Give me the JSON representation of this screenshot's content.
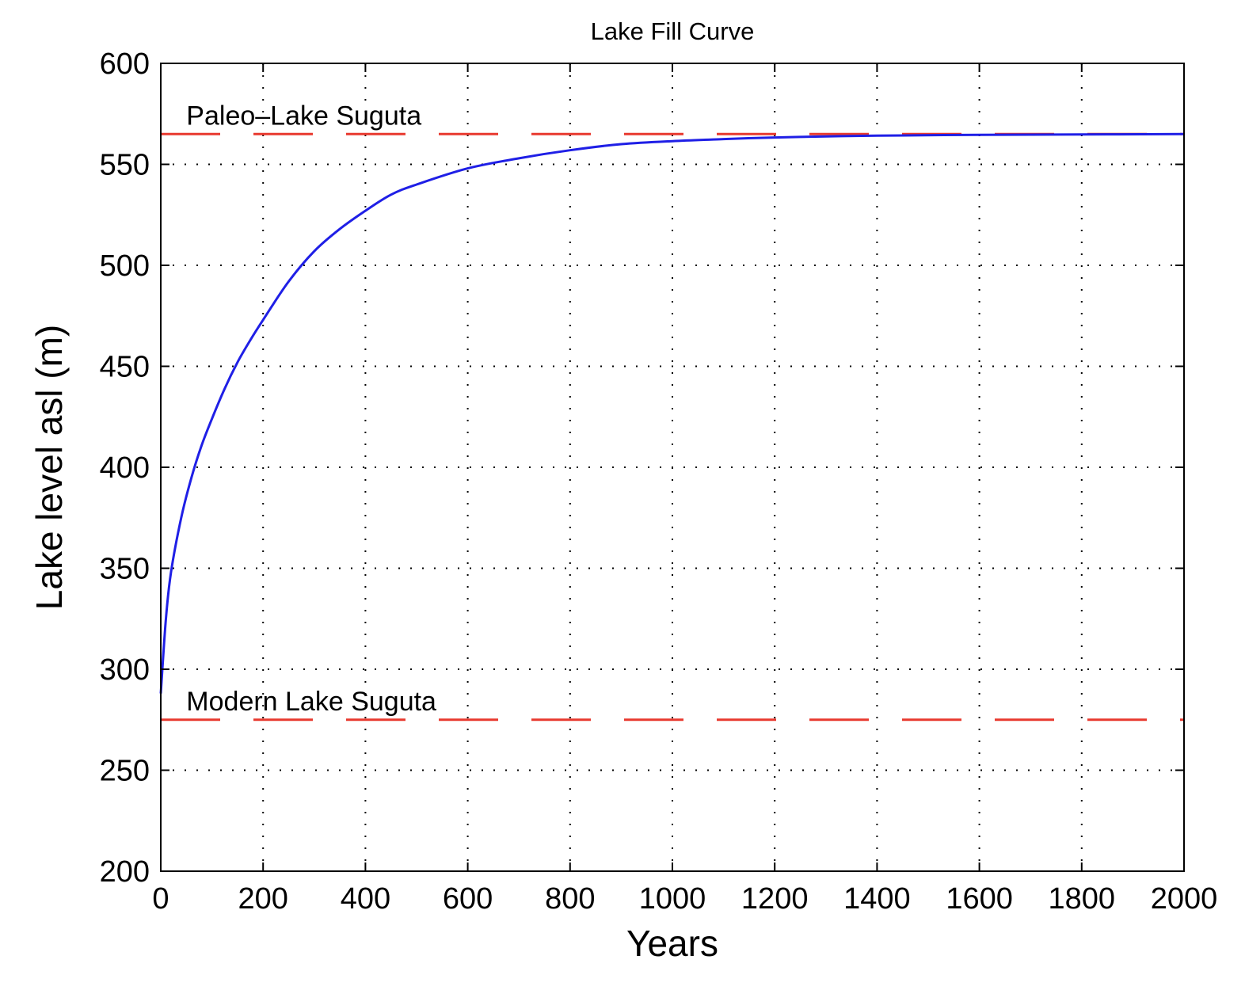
{
  "chart_data": {
    "type": "line",
    "title": "Lake Fill Curve",
    "xlabel": "Years",
    "ylabel": "Lake level asl (m)",
    "xlim": [
      0,
      2000
    ],
    "ylim": [
      200,
      600
    ],
    "xticks": [
      0,
      200,
      400,
      600,
      800,
      1000,
      1200,
      1400,
      1600,
      1800,
      2000
    ],
    "yticks": [
      200,
      250,
      300,
      350,
      400,
      450,
      500,
      550,
      600
    ],
    "grid": true,
    "grid_style": "dotted",
    "series": [
      {
        "color": "#1f1fe6",
        "style": "solid",
        "x": [
          0,
          10,
          20,
          40,
          60,
          80,
          100,
          125,
          150,
          175,
          200,
          250,
          300,
          350,
          400,
          450,
          500,
          600,
          700,
          800,
          900,
          1000,
          1100,
          1200,
          1300,
          1400,
          1600,
          1800,
          2000
        ],
        "y": [
          288,
          325,
          348,
          375,
          395,
          411,
          424,
          439,
          452,
          463,
          473,
          492,
          507,
          518,
          527,
          535,
          540,
          548,
          553,
          557,
          560,
          561.5,
          562.5,
          563.3,
          563.8,
          564.2,
          564.6,
          564.8,
          565
        ]
      }
    ],
    "reference_lines": [
      {
        "label": "Paleo–Lake Suguta",
        "y": 565,
        "color": "#e8392f",
        "style": "dashed"
      },
      {
        "label": "Modern Lake Suguta",
        "y": 275,
        "color": "#e8392f",
        "style": "dashed"
      }
    ]
  }
}
